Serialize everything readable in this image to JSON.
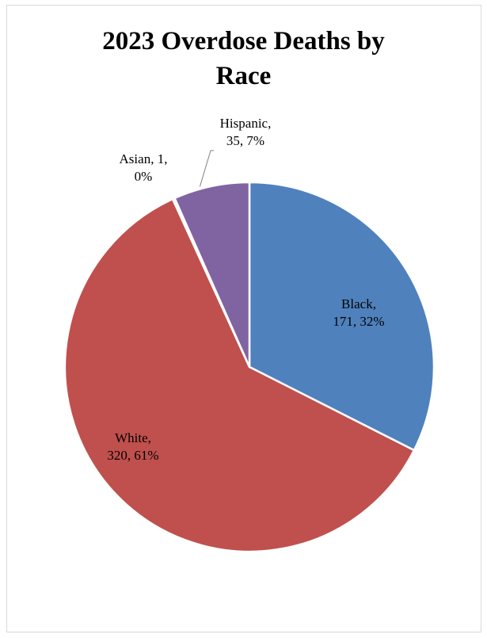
{
  "chart_data": {
    "type": "pie",
    "title": "2023 Overdose Deaths by\nRace",
    "slices": [
      {
        "name": "Black",
        "value": 171,
        "percent": "32%",
        "color": "#4f81bd",
        "label_lines": [
          "Black,",
          "171, 32%"
        ]
      },
      {
        "name": "White",
        "value": 320,
        "percent": "61%",
        "color": "#c0504d",
        "label_lines": [
          "White,",
          "320, 61%"
        ]
      },
      {
        "name": "Asian",
        "value": 1,
        "percent": "0%",
        "color": "#9bbb59",
        "label_lines": [
          "Asian, 1,",
          "0%"
        ]
      },
      {
        "name": "Hispanic",
        "value": 35,
        "percent": "7%",
        "color": "#8064a2",
        "label_lines": [
          "Hispanic,",
          "35, 7%"
        ]
      }
    ],
    "legend": "none",
    "start_angle": "12 o'clock",
    "direction": "clockwise"
  }
}
